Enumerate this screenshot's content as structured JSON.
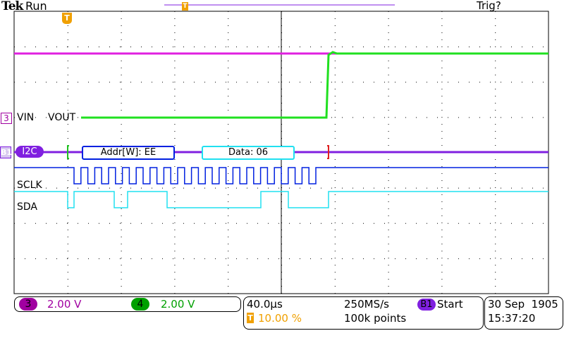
{
  "header": {
    "brand": "Tek",
    "state": "Run",
    "trigger_status": "Trig?"
  },
  "traces": {
    "ch3_marker": "3",
    "ch3_label": "VIN",
    "ch4_label": "VOUT",
    "bus_marker": "B1",
    "bus_type": "I2C",
    "addr_packet": "Addr[W]: EE",
    "data_packet": "Data: 06",
    "sclk_label": "SCLK",
    "sda_label": "SDA",
    "trigger_icon": "T"
  },
  "colors": {
    "ch3": "#e020e0",
    "ch4": "#20e020",
    "bus": "#8020e0",
    "sclk": "#0020e0",
    "sda": "#20e0f0",
    "trigger": "#f0a000"
  },
  "channels": [
    {
      "num": "3",
      "scale": "2.00 V",
      "color": "#a000a0"
    },
    {
      "num": "4",
      "scale": "2.00 V",
      "color": "#00a000"
    }
  ],
  "timebase": {
    "scale": "40.0µs",
    "sample_rate": "250MS/s",
    "trigger_source": "B1",
    "trigger_type": "Start",
    "trigger_icon": "T",
    "trigger_position": "10.00 %",
    "record_length": "100k points"
  },
  "datetime": {
    "date": "30 Sep  1905",
    "time": "15:37:20"
  }
}
